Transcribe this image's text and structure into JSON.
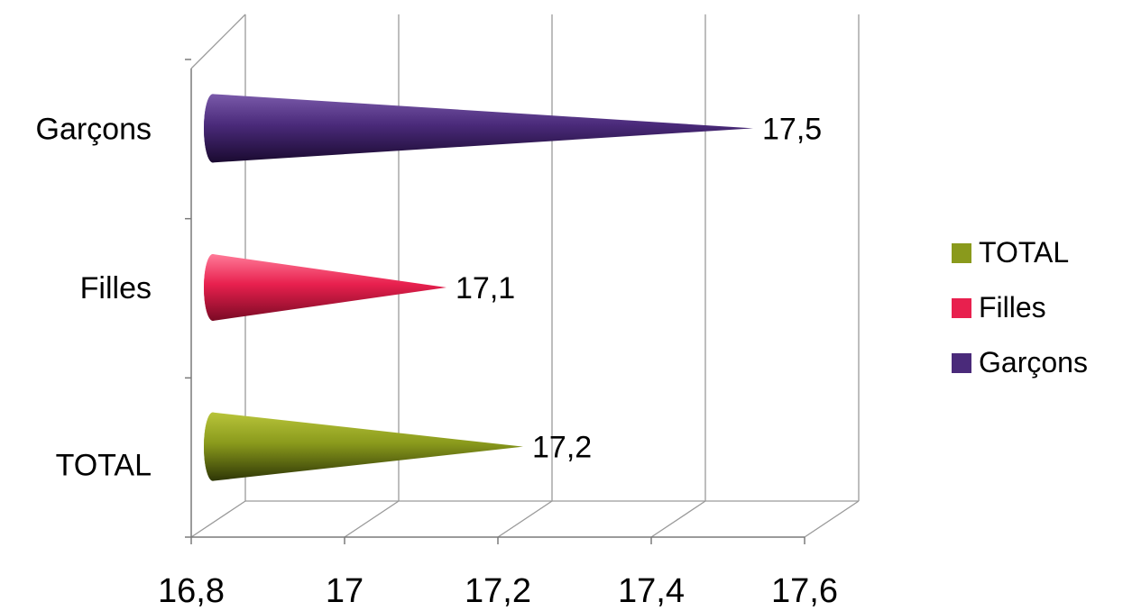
{
  "chart_data": {
    "type": "bar",
    "orientation": "horizontal",
    "style": "3d-cone",
    "categories": [
      "TOTAL",
      "Filles",
      "Garçons"
    ],
    "values": [
      17.2,
      17.1,
      17.5
    ],
    "data_labels": [
      "17,2",
      "17,1",
      "17,5"
    ],
    "xlim": [
      16.8,
      17.6
    ],
    "x_ticks": [
      16.8,
      17,
      17.2,
      17.4,
      17.6
    ],
    "x_tick_labels": [
      "16,8",
      "17",
      "17,2",
      "17,4",
      "17,6"
    ],
    "grid": true,
    "legend": {
      "position": "right",
      "entries": [
        {
          "name": "TOTAL",
          "color": "#8a9a1c"
        },
        {
          "name": "Filles",
          "color": "#e8204e"
        },
        {
          "name": "Garçons",
          "color": "#4a2a7a"
        }
      ]
    },
    "colors": [
      "#8a9a1c",
      "#e8204e",
      "#4a2a7a"
    ]
  }
}
